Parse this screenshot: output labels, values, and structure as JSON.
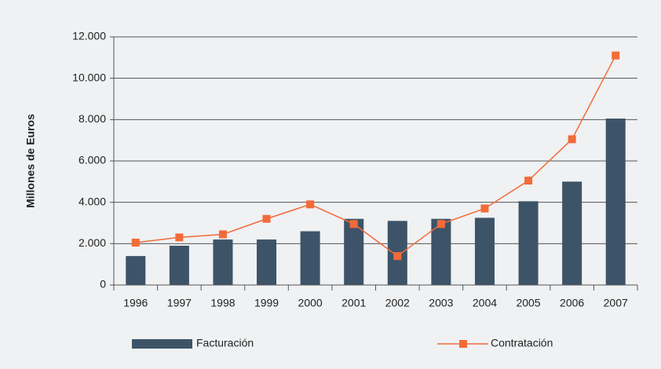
{
  "chart_data": {
    "type": "bar",
    "ylabel": "Millones de Euros",
    "categories": [
      "1996",
      "1997",
      "1998",
      "1999",
      "2000",
      "2001",
      "2002",
      "2003",
      "2004",
      "2005",
      "2006",
      "2007"
    ],
    "series": [
      {
        "name": "Facturación",
        "type": "bar",
        "color": "#3d5468",
        "values": [
          1400,
          1900,
          2200,
          2200,
          2600,
          3200,
          3100,
          3200,
          3250,
          4050,
          5000,
          8050
        ]
      },
      {
        "name": "Contratación",
        "type": "line",
        "color": "#f26b38",
        "values": [
          2050,
          2300,
          2450,
          3200,
          3900,
          2950,
          1400,
          2950,
          3700,
          5050,
          7050,
          11100
        ]
      }
    ],
    "ylim": [
      0,
      12000
    ],
    "yticks": [
      0,
      {
        "value": 2000,
        "label": "2.000"
      },
      {
        "value": 4000,
        "label": "4.000"
      },
      {
        "value": 6000,
        "label": "6.000"
      },
      {
        "value": 8000,
        "label": "8.000"
      },
      {
        "value": 10000,
        "label": "10.000"
      },
      {
        "value": 12000,
        "label": "12.000"
      }
    ],
    "grid": true,
    "legend": "bottom"
  }
}
